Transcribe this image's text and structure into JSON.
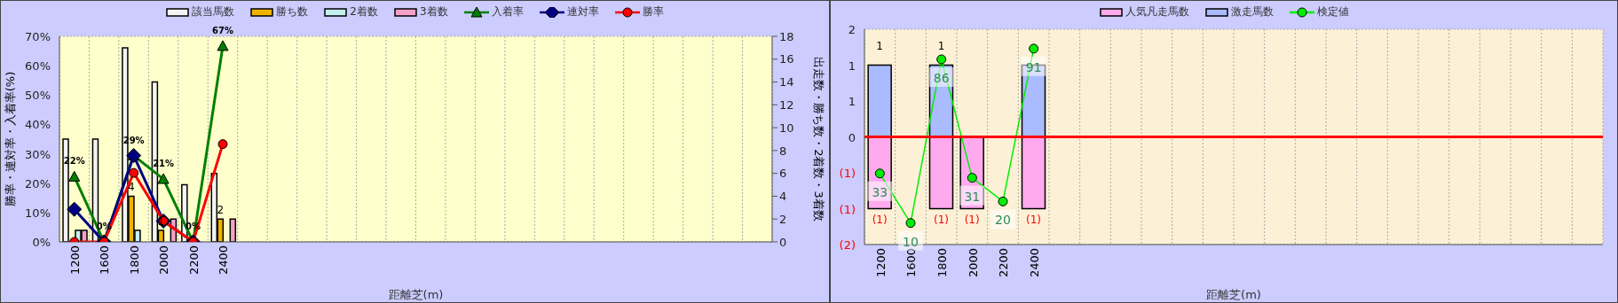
{
  "chart_data": [
    {
      "type": "bar",
      "xlabel": "距離芝(m)",
      "ylabel": "勝率・連対率・入着率(%)",
      "y2label": "出走数・勝ち数・2着数・3着数",
      "categories": [
        "1200",
        "1600",
        "1800",
        "2000",
        "2200",
        "2400",
        null,
        null,
        null,
        null,
        null,
        null,
        null,
        null,
        null,
        null,
        null,
        null,
        null,
        null,
        null,
        null,
        null,
        null
      ],
      "ylim": [
        0,
        70
      ],
      "yticks": [
        {
          "value": 0,
          "label": "0%"
        },
        {
          "value": 10,
          "label": "10%"
        },
        {
          "value": 20,
          "label": "20%"
        },
        {
          "value": 30,
          "label": "30%"
        },
        {
          "value": 40,
          "label": "40%"
        },
        {
          "value": 50,
          "label": "50%"
        },
        {
          "value": 60,
          "label": "60%"
        },
        {
          "value": 70,
          "label": "70%"
        }
      ],
      "y2lim": [
        0,
        18
      ],
      "y2ticks": [
        0,
        2,
        4,
        6,
        8,
        10,
        12,
        14,
        16,
        18
      ],
      "grid": true,
      "legend": "top",
      "series": [
        {
          "name": "該当馬数",
          "color": "#f4f4f4",
          "axis": "y2",
          "values": [
            9,
            9,
            17,
            14,
            5,
            6,
            null,
            null,
            null,
            null,
            null,
            null,
            null,
            null,
            null,
            null,
            null,
            null,
            null,
            null,
            null,
            null,
            null,
            null
          ]
        },
        {
          "name": "勝ち数",
          "color": "#f0b400",
          "axis": "y2",
          "values": [
            0,
            0,
            4,
            1,
            0,
            2,
            null,
            null,
            null,
            null,
            null,
            null,
            null,
            null,
            null,
            null,
            null,
            null,
            null,
            null,
            null,
            null,
            null,
            null
          ],
          "value_labels": [
            null,
            null,
            "4",
            "1",
            null,
            "2",
            null,
            null,
            null,
            null,
            null,
            null,
            null,
            null,
            null,
            null,
            null,
            null,
            null,
            null,
            null,
            null,
            null,
            null
          ]
        },
        {
          "name": "2着数",
          "color": "#c4f0f0",
          "axis": "y2",
          "values": [
            1,
            0,
            1,
            0,
            0,
            0,
            null,
            null,
            null,
            null,
            null,
            null,
            null,
            null,
            null,
            null,
            null,
            null,
            null,
            null,
            null,
            null,
            null,
            null
          ]
        },
        {
          "name": "3着数",
          "color": "#f4a0c8",
          "axis": "y2",
          "values": [
            1,
            0,
            0,
            2,
            0,
            2,
            null,
            null,
            null,
            null,
            null,
            null,
            null,
            null,
            null,
            null,
            null,
            null,
            null,
            null,
            null,
            null,
            null,
            null
          ]
        },
        {
          "name": "入着率",
          "type": "line",
          "color": "#008000",
          "marker": "triangle",
          "values": [
            22.2,
            0,
            29.4,
            21.4,
            0,
            66.7,
            null,
            null,
            null,
            null,
            null,
            null,
            null,
            null,
            null,
            null,
            null,
            null,
            null,
            null,
            null,
            null,
            null,
            null
          ],
          "value_labels": [
            "22%",
            "0%",
            "29%",
            "21%",
            "0%",
            "67%",
            null,
            null,
            null,
            null,
            null,
            null,
            null,
            null,
            null,
            null,
            null,
            null,
            null,
            null,
            null,
            null,
            null,
            null
          ]
        },
        {
          "name": "連対率",
          "type": "line",
          "color": "#000080",
          "marker": "diamond",
          "values": [
            11.1,
            0,
            29.4,
            7.1,
            0,
            null,
            null,
            null,
            null,
            null,
            null,
            null,
            null,
            null,
            null,
            null,
            null,
            null,
            null,
            null,
            null,
            null,
            null,
            null
          ]
        },
        {
          "name": "勝率",
          "type": "line",
          "color": "#ff0000",
          "marker": "circle",
          "values": [
            0,
            0,
            23.5,
            7.1,
            0,
            33.3,
            null,
            null,
            null,
            null,
            null,
            null,
            null,
            null,
            null,
            null,
            null,
            null,
            null,
            null,
            null,
            null,
            null,
            null
          ]
        }
      ]
    },
    {
      "type": "bar",
      "xlabel": "距離芝(m)",
      "categories": [
        "1200",
        "1600",
        "1800",
        "2000",
        "2200",
        "2400",
        null,
        null,
        null,
        null,
        null,
        null,
        null,
        null,
        null,
        null,
        null,
        null,
        null,
        null,
        null,
        null,
        null,
        null
      ],
      "ylim": [
        -1.5,
        1.5
      ],
      "yticks": [
        {
          "value": -1.5,
          "label": "(2)"
        },
        {
          "value": -1,
          "label": "(1)"
        },
        {
          "value": -0.5,
          "label": "(1)"
        },
        {
          "value": 0,
          "label": "0"
        },
        {
          "value": 0.5,
          "label": "1"
        },
        {
          "value": 1,
          "label": "1"
        },
        {
          "value": 1.5,
          "label": "2"
        }
      ],
      "y2lim": [
        0,
        100
      ],
      "stacked": true,
      "grid": true,
      "legend": "top",
      "ref_lines": [
        {
          "axis": "y",
          "value": 0,
          "color": "#ff0000"
        }
      ],
      "series": [
        {
          "name": "人気凡走馬数",
          "color": "#ffaaee",
          "values": [
            -1,
            null,
            -1,
            -1,
            null,
            -1,
            null,
            null,
            null,
            null,
            null,
            null,
            null,
            null,
            null,
            null,
            null,
            null,
            null,
            null,
            null,
            null,
            null,
            null
          ],
          "value_labels": [
            "(1)",
            null,
            "(1)",
            "(1)",
            null,
            "(1)",
            null,
            null,
            null,
            null,
            null,
            null,
            null,
            null,
            null,
            null,
            null,
            null,
            null,
            null,
            null,
            null,
            null,
            null
          ]
        },
        {
          "name": "激走馬数",
          "color": "#aabbff",
          "values": [
            1,
            null,
            1,
            null,
            null,
            1,
            null,
            null,
            null,
            null,
            null,
            null,
            null,
            null,
            null,
            null,
            null,
            null,
            null,
            null,
            null,
            null,
            null,
            null
          ],
          "value_labels": [
            "1",
            null,
            "1",
            null,
            null,
            null,
            null,
            null,
            null,
            null,
            null,
            null,
            null,
            null,
            null,
            null,
            null,
            null,
            null,
            null,
            null,
            null,
            null,
            null
          ]
        },
        {
          "name": "検定値",
          "type": "line",
          "color": "#00ee00",
          "marker": "circle",
          "axis": "y2",
          "values": [
            33,
            10,
            86,
            31,
            20,
            91,
            null,
            null,
            null,
            null,
            null,
            null,
            null,
            null,
            null,
            null,
            null,
            null,
            null,
            null,
            null,
            null,
            null,
            null
          ],
          "value_labels": [
            "33",
            "10",
            "86",
            "31",
            "20",
            "91",
            null,
            null,
            null,
            null,
            null,
            null,
            null,
            null,
            null,
            null,
            null,
            null,
            null,
            null,
            null,
            null,
            null,
            null
          ]
        }
      ]
    }
  ]
}
